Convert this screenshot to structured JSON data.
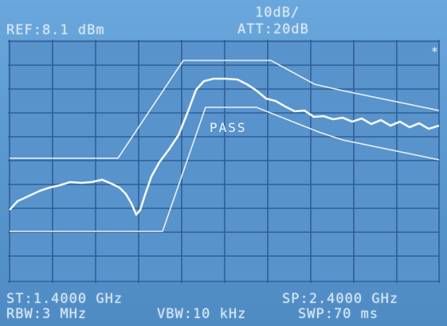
{
  "header": {
    "ref": "REF:8.1 dBm",
    "scale": "10dB/",
    "att": "ATT:20dB",
    "marker_symbol": "*"
  },
  "plot": {
    "pass_label": "PASS"
  },
  "footer": {
    "start": "ST:1.4000 GHz",
    "stop": "SP:2.4000 GHz",
    "rbw": "RBW:3 MHz",
    "vbw": "VBW:10 kHz",
    "sweep": "SWP:70 ms"
  },
  "colors": {
    "grid_line": "#2f5f96",
    "trace": "#f1f7ff",
    "limit": "#e7f1fb",
    "text": "#d7e8f7"
  }
}
